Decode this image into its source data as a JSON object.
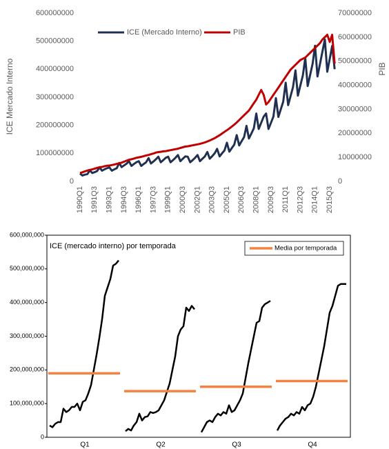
{
  "chart_data": [
    {
      "type": "line",
      "ylabel": "ICE Mercado Interno",
      "y2label": "PIB",
      "categories": [
        "1990Q1",
        null,
        null,
        null,
        null,
        null,
        "1991Q3",
        null,
        null,
        null,
        null,
        null,
        "1993Q1",
        null,
        null,
        null,
        null,
        null,
        "1994Q3",
        null,
        null,
        null,
        null,
        null,
        "1996Q1",
        null,
        null,
        null,
        null,
        null,
        "1997Q3",
        null,
        null,
        null,
        null,
        null,
        "1999Q1",
        null,
        null,
        null,
        null,
        null,
        "2000Q3",
        null,
        null,
        null,
        null,
        null,
        "2002Q1",
        null,
        null,
        null,
        null,
        null,
        "2003Q3",
        null,
        null,
        null,
        null,
        null,
        "2005Q1",
        null,
        null,
        null,
        null,
        null,
        "2006Q3",
        null,
        null,
        null,
        null,
        null,
        "2008Q1",
        null,
        null,
        null,
        null,
        null,
        "2009Q3",
        null,
        null,
        null,
        null,
        null,
        "2011Q1",
        null,
        null,
        null,
        null,
        null,
        "2012Q3",
        null,
        null,
        null,
        null,
        null,
        "2014Q1",
        null,
        null,
        null,
        null,
        null,
        "2015Q3",
        null,
        null
      ],
      "series": [
        {
          "name": "ICE (Mercado Interno)",
          "color": "#1f3050",
          "values": [
            28000000,
            21000000,
            24000000,
            26000000,
            39000000,
            30000000,
            33000000,
            37000000,
            50000000,
            38000000,
            43000000,
            47000000,
            50000000,
            38000000,
            43000000,
            47000000,
            66000000,
            51000000,
            57000000,
            63000000,
            72000000,
            55000000,
            62000000,
            68000000,
            72000000,
            55000000,
            62000000,
            68000000,
            83000000,
            64000000,
            71000000,
            79000000,
            88000000,
            68000000,
            76000000,
            84000000,
            88000000,
            68000000,
            76000000,
            84000000,
            94000000,
            72000000,
            81000000,
            89000000,
            88000000,
            68000000,
            76000000,
            84000000,
            94000000,
            72000000,
            81000000,
            89000000,
            105000000,
            81000000,
            90000000,
            100000000,
            116000000,
            89000000,
            100000000,
            110000000,
            138000000,
            106000000,
            119000000,
            131000000,
            165000000,
            128000000,
            143000000,
            158000000,
            198000000,
            153000000,
            171000000,
            189000000,
            242000000,
            187000000,
            209000000,
            231000000,
            242000000,
            187000000,
            209000000,
            231000000,
            297000000,
            230000000,
            257000000,
            284000000,
            352000000,
            272000000,
            304000000,
            336000000,
            396000000,
            306000000,
            342000000,
            378000000,
            440000000,
            340000000,
            380000000,
            420000000,
            484000000,
            374000000,
            418000000,
            462000000,
            506000000,
            391000000,
            437000000,
            483000000,
            400000000
          ]
        },
        {
          "name": "PIB",
          "color": "#c00000",
          "axis": "y2",
          "values": [
            3500000,
            3800000,
            4200000,
            4500000,
            4800000,
            5000000,
            5300000,
            5600000,
            5900000,
            6000000,
            6300000,
            6500000,
            6600000,
            6800000,
            7000000,
            7300000,
            7500000,
            7800000,
            8200000,
            8600000,
            9000000,
            9200000,
            9500000,
            9800000,
            10000000,
            10200000,
            10500000,
            10800000,
            11000000,
            11300000,
            11600000,
            12000000,
            12200000,
            12300000,
            12500000,
            12600000,
            12800000,
            13000000,
            13200000,
            13400000,
            13600000,
            13900000,
            14200000,
            14500000,
            14600000,
            14800000,
            15000000,
            15200000,
            15400000,
            15600000,
            15900000,
            16200000,
            16600000,
            17000000,
            17500000,
            18000000,
            18600000,
            19200000,
            19900000,
            20600000,
            21300000,
            22000000,
            22800000,
            23600000,
            24500000,
            25500000,
            26500000,
            27500000,
            28500000,
            29500000,
            31000000,
            32500000,
            34000000,
            36000000,
            38000000,
            36000000,
            32000000,
            33000000,
            34500000,
            36000000,
            37500000,
            39000000,
            40500000,
            42000000,
            43500000,
            45000000,
            46500000,
            47500000,
            48500000,
            49500000,
            50500000,
            51000000,
            51500000,
            52500000,
            53500000,
            54500000,
            55500000,
            56500000,
            57500000,
            59000000,
            60000000,
            61000000,
            58000000,
            61000000,
            49000000
          ]
        }
      ],
      "ylim": [
        0,
        600000000
      ],
      "yticks": [
        0,
        100000000,
        200000000,
        300000000,
        400000000,
        500000000,
        600000000
      ],
      "y2lim": [
        0,
        70000000
      ],
      "y2ticks": [
        0,
        10000000,
        20000000,
        30000000,
        40000000,
        50000000,
        60000000,
        70000000
      ]
    },
    {
      "type": "seasonal",
      "title": "ICE (mercado interno) por temporada",
      "categories": [
        "Q1",
        "Q2",
        "Q3",
        "Q4"
      ],
      "line_color": "#000000",
      "season_values": [
        [
          35000000,
          30000000,
          40000000,
          45000000,
          45000000,
          85000000,
          75000000,
          80000000,
          90000000,
          90000000,
          100000000,
          80000000,
          105000000,
          110000000,
          130000000,
          155000000,
          200000000,
          245000000,
          295000000,
          350000000,
          420000000,
          445000000,
          470000000,
          510000000,
          515000000,
          525000000
        ],
        [
          18000000,
          25000000,
          20000000,
          35000000,
          45000000,
          70000000,
          50000000,
          60000000,
          62000000,
          75000000,
          72000000,
          75000000,
          80000000,
          95000000,
          110000000,
          135000000,
          160000000,
          200000000,
          240000000,
          300000000,
          320000000,
          330000000,
          385000000,
          375000000,
          390000000,
          380000000
        ],
        [
          15000000,
          30000000,
          45000000,
          50000000,
          45000000,
          60000000,
          70000000,
          65000000,
          75000000,
          70000000,
          95000000,
          75000000,
          80000000,
          95000000,
          110000000,
          130000000,
          175000000,
          220000000,
          260000000,
          300000000,
          340000000,
          345000000,
          385000000,
          395000000,
          400000000,
          405000000
        ],
        [
          20000000,
          35000000,
          45000000,
          55000000,
          60000000,
          70000000,
          65000000,
          75000000,
          70000000,
          90000000,
          80000000,
          95000000,
          100000000,
          120000000,
          150000000,
          190000000,
          230000000,
          270000000,
          320000000,
          370000000,
          390000000,
          420000000,
          450000000,
          455000000,
          455000000,
          455000000
        ]
      ],
      "series": [
        {
          "name": "Media por temporada",
          "color": "#f58240",
          "values": [
            190000000,
            137000000,
            150000000,
            167000000
          ]
        }
      ],
      "ylim": [
        0,
        600000000
      ],
      "yticks": [
        0,
        {
          "value": 100000000,
          "label": "100,000,000"
        },
        {
          "value": 200000000,
          "label": "200,000,000"
        },
        {
          "value": 300000000,
          "label": "300,000,000"
        },
        {
          "value": 400000000,
          "label": "400,000,000"
        },
        {
          "value": 500000000,
          "label": "500,000,000"
        },
        {
          "value": 600000000,
          "label": "600,000,000"
        }
      ]
    }
  ]
}
